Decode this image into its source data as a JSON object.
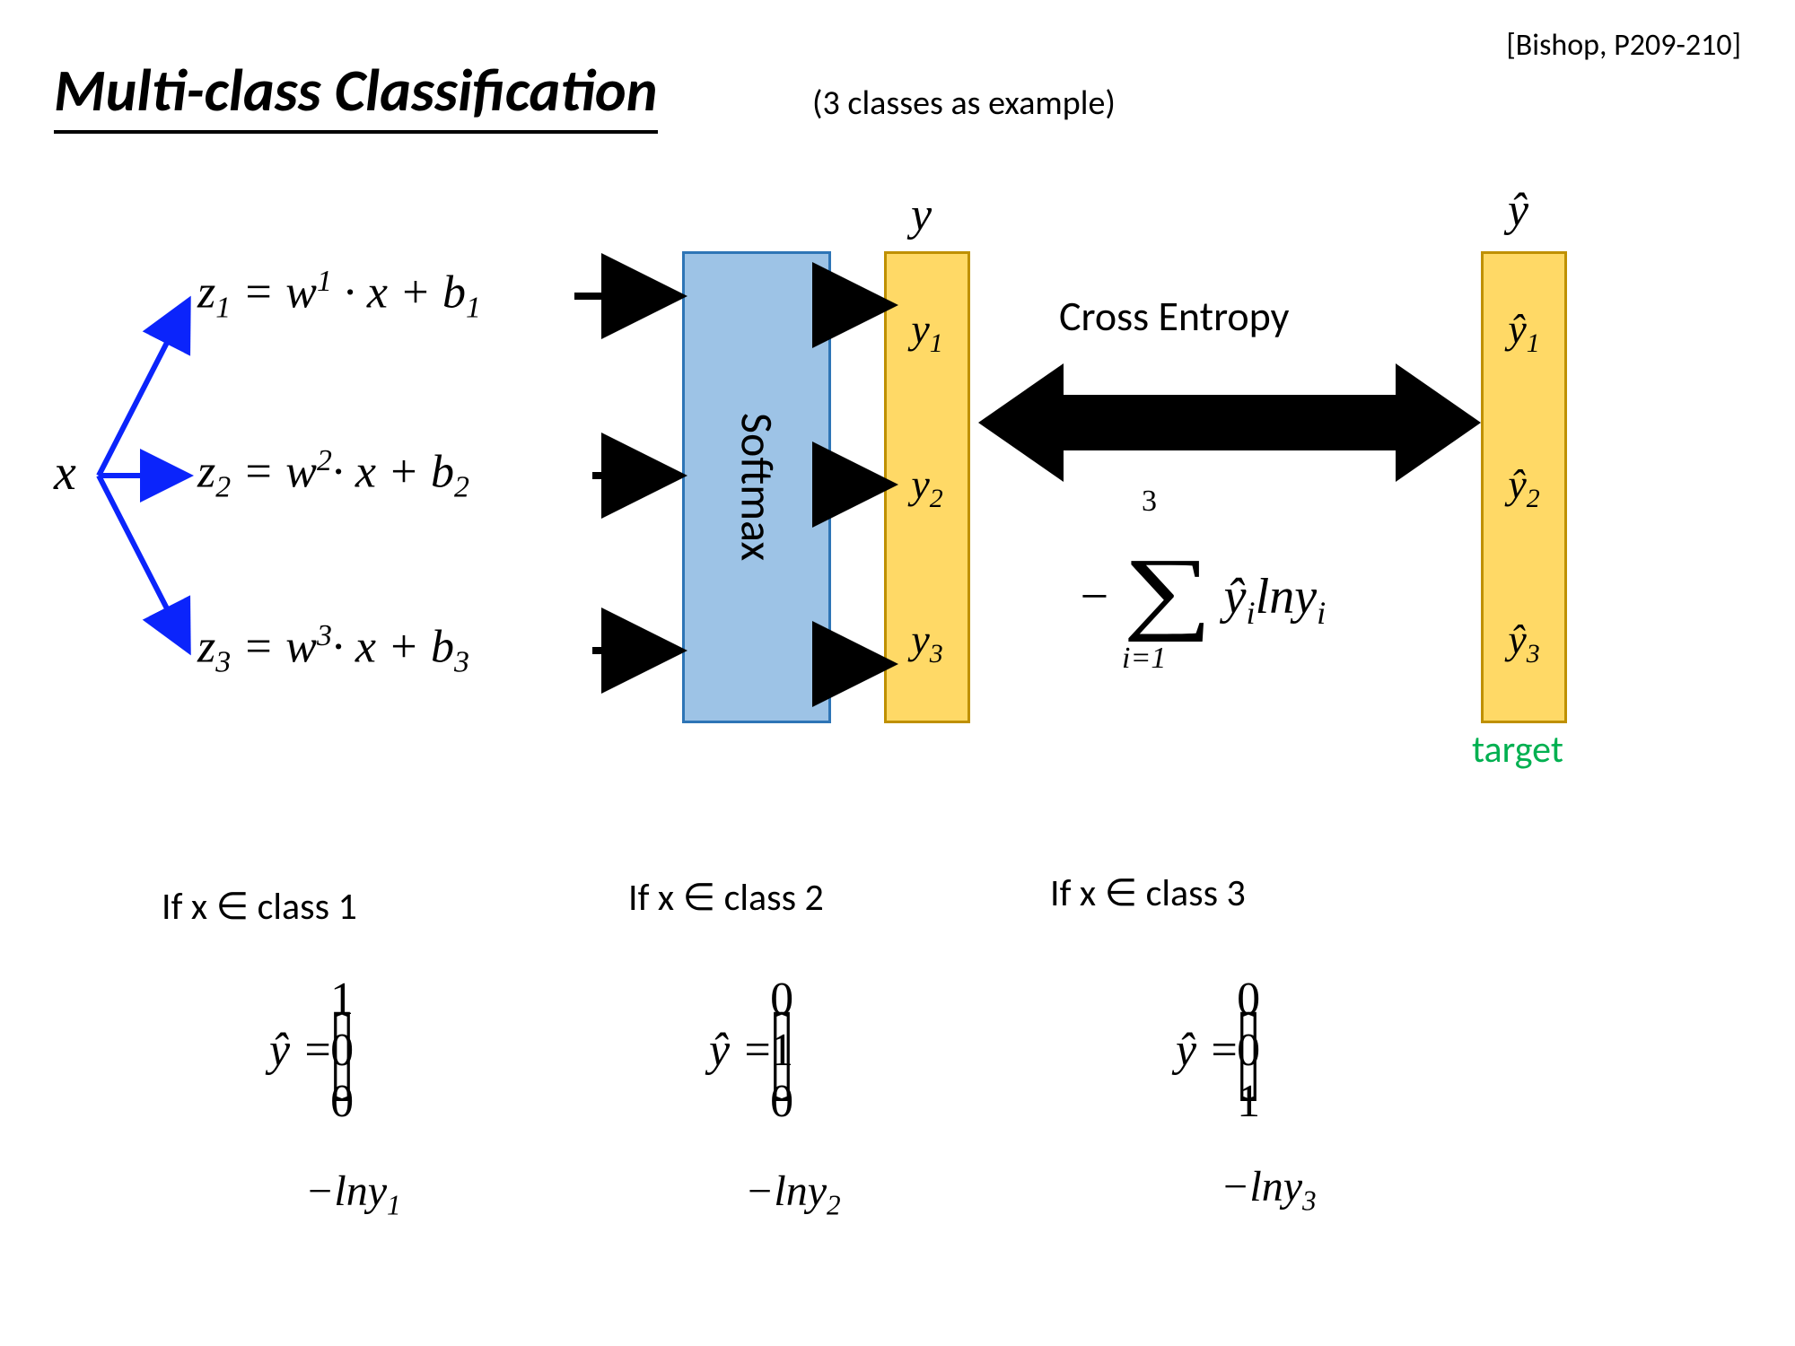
{
  "reference": "[Bishop, P209-210]",
  "title": "Multi-class Classification",
  "subtitle": "(3 classes as example)",
  "diagram": {
    "input": "x",
    "z_equations": [
      "z₁ = w¹ · x + b₁",
      "z₂ = w² · x + b₂",
      "z₃ = w³ · x + b₃"
    ],
    "z_html": [
      "<i>z</i><sub>1</sub> = <i>w</i><sup>1</sup> · <i>x</i> + <i>b</i><sub>1</sub>",
      "<i>z</i><sub>2</sub> = <i>w</i><sup>2</sup>· <i>x</i> + <i>b</i><sub>2</sub>",
      "<i>z</i><sub>3</sub> = <i>w</i><sup>3</sup>· <i>x</i> + <i>b</i><sub>3</sub>"
    ],
    "softmax_label": "Softmax",
    "y_header": "y",
    "y_labels": [
      "y₁",
      "y₂",
      "y₃"
    ],
    "yhat_header": "ŷ",
    "yhat_labels": [
      "ŷ₁",
      "ŷ₂",
      "ŷ₃"
    ],
    "ce_label": "Cross Entropy",
    "ce_formula_html": "− <span style='font-size:1.6em;position:relative;top:0.08em'>∑</span> <i>ŷ<sub>i</sub> lny<sub>i</sub></i>",
    "ce_upper": "3",
    "ce_lower": "i=1",
    "target_label": "target",
    "colors": {
      "softmax_fill": "#9dc3e6",
      "softmax_border": "#2e75b6",
      "vec_fill": "#ffd966",
      "vec_border": "#bf9000",
      "blue_arrow": "#0b24fb",
      "black": "#000000",
      "target_text": "#00b050",
      "background": "#ffffff"
    },
    "arrow_stroke_width": 6
  },
  "cases": [
    {
      "header": "If x ∈ class 1",
      "vec": [
        "1",
        "0",
        "0"
      ],
      "loss": "−lny₁",
      "loss_html": "−<i>lny</i><sub>1</sub>"
    },
    {
      "header": "If x ∈ class 2",
      "vec": [
        "0",
        "1",
        "0"
      ],
      "loss": "−lny₂",
      "loss_html": "−<i>lny</i><sub>2</sub>"
    },
    {
      "header": "If x ∈ class 3",
      "vec": [
        "0",
        "0",
        "1"
      ],
      "loss": "−lny₃",
      "loss_html": "−<i>lny</i><sub>3</sub>"
    }
  ]
}
